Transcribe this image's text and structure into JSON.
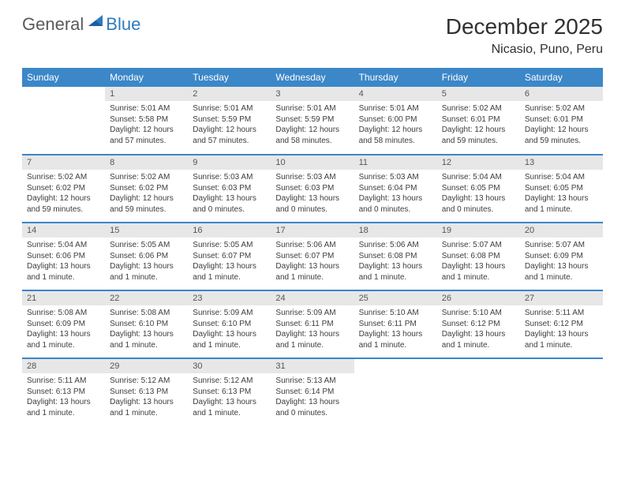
{
  "logo": {
    "general": "General",
    "blue": "Blue"
  },
  "header": {
    "month_title": "December 2025",
    "location": "Nicasio, Puno, Peru"
  },
  "colors": {
    "header_bg": "#3b87c8",
    "header_text": "#ffffff",
    "daynum_bg": "#e7e7e7",
    "rule": "#3b87c8",
    "body_text": "#3d3d3d"
  },
  "weekdays": [
    "Sunday",
    "Monday",
    "Tuesday",
    "Wednesday",
    "Thursday",
    "Friday",
    "Saturday"
  ],
  "weeks": [
    [
      {
        "n": "",
        "sr": "",
        "ss": "",
        "dl": ""
      },
      {
        "n": "1",
        "sr": "Sunrise: 5:01 AM",
        "ss": "Sunset: 5:58 PM",
        "dl": "Daylight: 12 hours and 57 minutes."
      },
      {
        "n": "2",
        "sr": "Sunrise: 5:01 AM",
        "ss": "Sunset: 5:59 PM",
        "dl": "Daylight: 12 hours and 57 minutes."
      },
      {
        "n": "3",
        "sr": "Sunrise: 5:01 AM",
        "ss": "Sunset: 5:59 PM",
        "dl": "Daylight: 12 hours and 58 minutes."
      },
      {
        "n": "4",
        "sr": "Sunrise: 5:01 AM",
        "ss": "Sunset: 6:00 PM",
        "dl": "Daylight: 12 hours and 58 minutes."
      },
      {
        "n": "5",
        "sr": "Sunrise: 5:02 AM",
        "ss": "Sunset: 6:01 PM",
        "dl": "Daylight: 12 hours and 59 minutes."
      },
      {
        "n": "6",
        "sr": "Sunrise: 5:02 AM",
        "ss": "Sunset: 6:01 PM",
        "dl": "Daylight: 12 hours and 59 minutes."
      }
    ],
    [
      {
        "n": "7",
        "sr": "Sunrise: 5:02 AM",
        "ss": "Sunset: 6:02 PM",
        "dl": "Daylight: 12 hours and 59 minutes."
      },
      {
        "n": "8",
        "sr": "Sunrise: 5:02 AM",
        "ss": "Sunset: 6:02 PM",
        "dl": "Daylight: 12 hours and 59 minutes."
      },
      {
        "n": "9",
        "sr": "Sunrise: 5:03 AM",
        "ss": "Sunset: 6:03 PM",
        "dl": "Daylight: 13 hours and 0 minutes."
      },
      {
        "n": "10",
        "sr": "Sunrise: 5:03 AM",
        "ss": "Sunset: 6:03 PM",
        "dl": "Daylight: 13 hours and 0 minutes."
      },
      {
        "n": "11",
        "sr": "Sunrise: 5:03 AM",
        "ss": "Sunset: 6:04 PM",
        "dl": "Daylight: 13 hours and 0 minutes."
      },
      {
        "n": "12",
        "sr": "Sunrise: 5:04 AM",
        "ss": "Sunset: 6:05 PM",
        "dl": "Daylight: 13 hours and 0 minutes."
      },
      {
        "n": "13",
        "sr": "Sunrise: 5:04 AM",
        "ss": "Sunset: 6:05 PM",
        "dl": "Daylight: 13 hours and 1 minute."
      }
    ],
    [
      {
        "n": "14",
        "sr": "Sunrise: 5:04 AM",
        "ss": "Sunset: 6:06 PM",
        "dl": "Daylight: 13 hours and 1 minute."
      },
      {
        "n": "15",
        "sr": "Sunrise: 5:05 AM",
        "ss": "Sunset: 6:06 PM",
        "dl": "Daylight: 13 hours and 1 minute."
      },
      {
        "n": "16",
        "sr": "Sunrise: 5:05 AM",
        "ss": "Sunset: 6:07 PM",
        "dl": "Daylight: 13 hours and 1 minute."
      },
      {
        "n": "17",
        "sr": "Sunrise: 5:06 AM",
        "ss": "Sunset: 6:07 PM",
        "dl": "Daylight: 13 hours and 1 minute."
      },
      {
        "n": "18",
        "sr": "Sunrise: 5:06 AM",
        "ss": "Sunset: 6:08 PM",
        "dl": "Daylight: 13 hours and 1 minute."
      },
      {
        "n": "19",
        "sr": "Sunrise: 5:07 AM",
        "ss": "Sunset: 6:08 PM",
        "dl": "Daylight: 13 hours and 1 minute."
      },
      {
        "n": "20",
        "sr": "Sunrise: 5:07 AM",
        "ss": "Sunset: 6:09 PM",
        "dl": "Daylight: 13 hours and 1 minute."
      }
    ],
    [
      {
        "n": "21",
        "sr": "Sunrise: 5:08 AM",
        "ss": "Sunset: 6:09 PM",
        "dl": "Daylight: 13 hours and 1 minute."
      },
      {
        "n": "22",
        "sr": "Sunrise: 5:08 AM",
        "ss": "Sunset: 6:10 PM",
        "dl": "Daylight: 13 hours and 1 minute."
      },
      {
        "n": "23",
        "sr": "Sunrise: 5:09 AM",
        "ss": "Sunset: 6:10 PM",
        "dl": "Daylight: 13 hours and 1 minute."
      },
      {
        "n": "24",
        "sr": "Sunrise: 5:09 AM",
        "ss": "Sunset: 6:11 PM",
        "dl": "Daylight: 13 hours and 1 minute."
      },
      {
        "n": "25",
        "sr": "Sunrise: 5:10 AM",
        "ss": "Sunset: 6:11 PM",
        "dl": "Daylight: 13 hours and 1 minute."
      },
      {
        "n": "26",
        "sr": "Sunrise: 5:10 AM",
        "ss": "Sunset: 6:12 PM",
        "dl": "Daylight: 13 hours and 1 minute."
      },
      {
        "n": "27",
        "sr": "Sunrise: 5:11 AM",
        "ss": "Sunset: 6:12 PM",
        "dl": "Daylight: 13 hours and 1 minute."
      }
    ],
    [
      {
        "n": "28",
        "sr": "Sunrise: 5:11 AM",
        "ss": "Sunset: 6:13 PM",
        "dl": "Daylight: 13 hours and 1 minute."
      },
      {
        "n": "29",
        "sr": "Sunrise: 5:12 AM",
        "ss": "Sunset: 6:13 PM",
        "dl": "Daylight: 13 hours and 1 minute."
      },
      {
        "n": "30",
        "sr": "Sunrise: 5:12 AM",
        "ss": "Sunset: 6:13 PM",
        "dl": "Daylight: 13 hours and 1 minute."
      },
      {
        "n": "31",
        "sr": "Sunrise: 5:13 AM",
        "ss": "Sunset: 6:14 PM",
        "dl": "Daylight: 13 hours and 0 minutes."
      },
      {
        "n": "",
        "sr": "",
        "ss": "",
        "dl": ""
      },
      {
        "n": "",
        "sr": "",
        "ss": "",
        "dl": ""
      },
      {
        "n": "",
        "sr": "",
        "ss": "",
        "dl": ""
      }
    ]
  ]
}
